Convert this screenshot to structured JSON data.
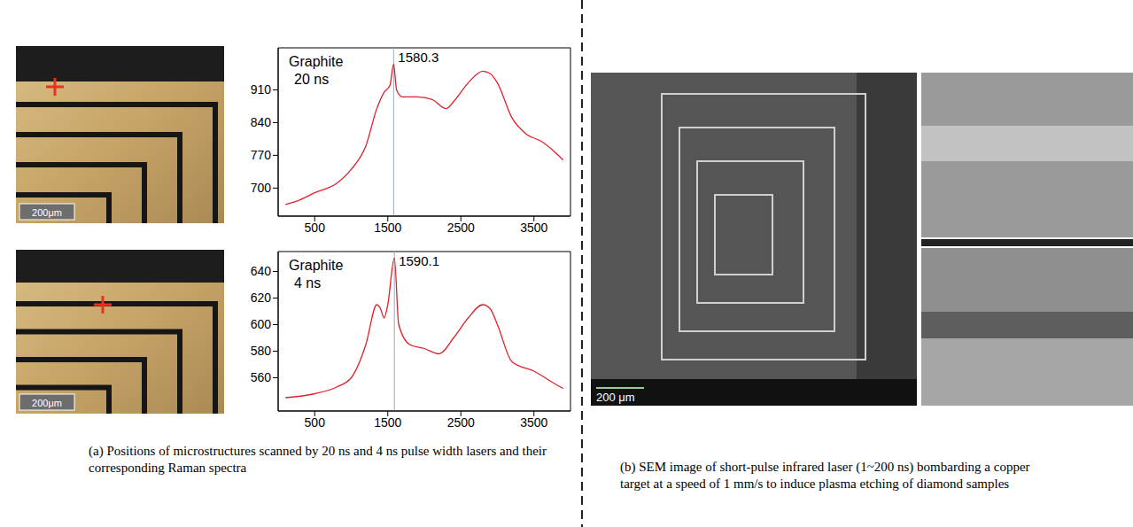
{
  "chart_data": [
    {
      "type": "line",
      "title": "Graphite",
      "subtitle": "20 ns",
      "color": "#e0202a",
      "grid": false,
      "x": [
        100,
        300,
        500,
        800,
        1000,
        1200,
        1350,
        1450,
        1530,
        1580,
        1620,
        1700,
        1900,
        2100,
        2300,
        2400,
        2600,
        2800,
        2900,
        3000,
        3200,
        3400,
        3600,
        3800,
        3900
      ],
      "values": [
        665,
        675,
        690,
        710,
        740,
        790,
        870,
        905,
        920,
        965,
        910,
        895,
        895,
        890,
        870,
        885,
        925,
        950,
        945,
        925,
        850,
        815,
        800,
        775,
        760
      ],
      "xlim": [
        0,
        4000
      ],
      "xticks": [
        500,
        1500,
        2500,
        3500
      ],
      "ylim": [
        640,
        1000
      ],
      "yticks": [
        700,
        770,
        840,
        910
      ],
      "annotations": [
        {
          "x": 1580.3,
          "label": "1580.3"
        }
      ]
    },
    {
      "type": "line",
      "title": "Graphite",
      "subtitle": "4 ns",
      "color": "#e0202a",
      "grid": false,
      "x": [
        100,
        500,
        800,
        1000,
        1200,
        1350,
        1400,
        1450,
        1500,
        1590,
        1650,
        1800,
        2000,
        2200,
        2400,
        2600,
        2800,
        2900,
        3000,
        3200,
        3500,
        3800,
        3900
      ],
      "values": [
        545,
        548,
        553,
        560,
        585,
        615,
        612,
        605,
        615,
        650,
        600,
        585,
        582,
        578,
        590,
        605,
        615,
        612,
        600,
        572,
        565,
        555,
        552
      ],
      "xlim": [
        0,
        4000
      ],
      "xticks": [
        500,
        1500,
        2500,
        3500
      ],
      "ylim": [
        535,
        655
      ],
      "yticks": [
        560,
        580,
        600,
        620,
        640
      ],
      "annotations": [
        {
          "x": 1590.1,
          "label": "1590.1"
        }
      ]
    }
  ],
  "images": [
    {
      "scale_bar": "200μm"
    },
    {
      "scale_bar": "200μm"
    },
    {
      "scale_bar": "200 μm"
    }
  ],
  "captions": [
    "(a) Positions of microstructures scanned by 20 ns and 4 ns pulse width lasers and their corresponding Raman spectra",
    "(b) SEM image of short-pulse infrared laser (1~200 ns) bombarding a copper target at a speed of 1 mm/s to induce plasma etching of diamond samples"
  ]
}
